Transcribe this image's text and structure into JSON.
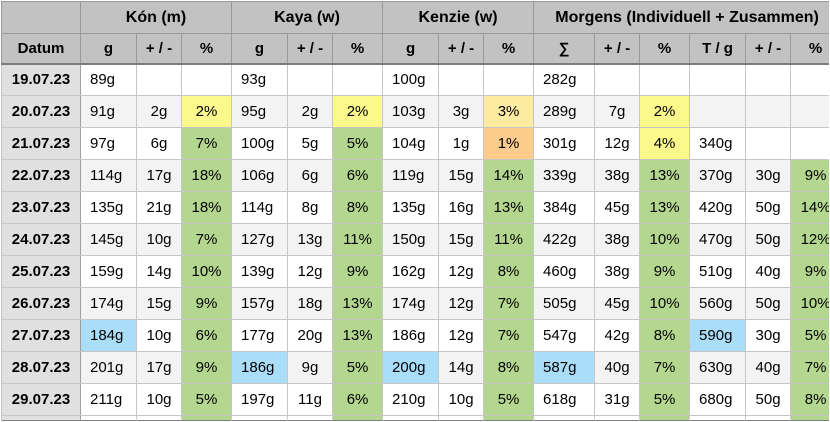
{
  "colors": {
    "green": "#b3d78f",
    "yellow": "#fbf88c",
    "amber": "#fcebA1",
    "orange": "#fbcc8b",
    "blue": "#aaddf7",
    "stripe": "#f3f3f3",
    "white": "#ffffff",
    "header_bg": "#c2c2c2",
    "date_bg": "#e0e0e0"
  },
  "table": {
    "groups": [
      {
        "label": "",
        "span": 1,
        "name": "corner-cell"
      },
      {
        "label": "Kón (m)",
        "span": 3,
        "name": "group-header-kon"
      },
      {
        "label": "Kaya (w)",
        "span": 3,
        "name": "group-header-kaya"
      },
      {
        "label": "Kenzie (w)",
        "span": 3,
        "name": "group-header-kenzie"
      },
      {
        "label": "Morgens (Individuell + Zusammen)",
        "span": 6,
        "name": "group-header-morgens"
      }
    ],
    "columns": [
      "Datum",
      "g",
      "+ / -",
      "%",
      "g",
      "+ / -",
      "%",
      "g",
      "+ / -",
      "%",
      "∑",
      "+ / -",
      "%",
      "T / g",
      "+ / -",
      "%"
    ],
    "rows": [
      {
        "date": "19.07.23",
        "cells": [
          {
            "v": "89g"
          },
          {
            "v": ""
          },
          {
            "v": ""
          },
          {
            "v": "93g"
          },
          {
            "v": ""
          },
          {
            "v": ""
          },
          {
            "v": "100g"
          },
          {
            "v": ""
          },
          {
            "v": ""
          },
          {
            "v": "282g"
          },
          {
            "v": ""
          },
          {
            "v": ""
          },
          {
            "v": ""
          },
          {
            "v": ""
          },
          {
            "v": ""
          }
        ]
      },
      {
        "date": "20.07.23",
        "cells": [
          {
            "v": "91g"
          },
          {
            "v": "2g"
          },
          {
            "v": "2%",
            "bg": "yellow"
          },
          {
            "v": "95g"
          },
          {
            "v": "2g"
          },
          {
            "v": "2%",
            "bg": "yellow"
          },
          {
            "v": "103g"
          },
          {
            "v": "3g"
          },
          {
            "v": "3%",
            "bg": "amber"
          },
          {
            "v": "289g"
          },
          {
            "v": "7g"
          },
          {
            "v": "2%",
            "bg": "yellow"
          },
          {
            "v": ""
          },
          {
            "v": ""
          },
          {
            "v": ""
          }
        ]
      },
      {
        "date": "21.07.23",
        "cells": [
          {
            "v": "97g"
          },
          {
            "v": "6g"
          },
          {
            "v": "7%",
            "bg": "green"
          },
          {
            "v": "100g"
          },
          {
            "v": "5g"
          },
          {
            "v": "5%",
            "bg": "green"
          },
          {
            "v": "104g"
          },
          {
            "v": "1g"
          },
          {
            "v": "1%",
            "bg": "orange"
          },
          {
            "v": "301g"
          },
          {
            "v": "12g"
          },
          {
            "v": "4%",
            "bg": "yellow"
          },
          {
            "v": "340g"
          },
          {
            "v": ""
          },
          {
            "v": ""
          }
        ]
      },
      {
        "date": "22.07.23",
        "cells": [
          {
            "v": "114g"
          },
          {
            "v": "17g"
          },
          {
            "v": "18%",
            "bg": "green"
          },
          {
            "v": "106g"
          },
          {
            "v": "6g"
          },
          {
            "v": "6%",
            "bg": "green"
          },
          {
            "v": "119g"
          },
          {
            "v": "15g"
          },
          {
            "v": "14%",
            "bg": "green"
          },
          {
            "v": "339g"
          },
          {
            "v": "38g"
          },
          {
            "v": "13%",
            "bg": "green"
          },
          {
            "v": "370g"
          },
          {
            "v": "30g"
          },
          {
            "v": "9%",
            "bg": "green"
          }
        ]
      },
      {
        "date": "23.07.23",
        "cells": [
          {
            "v": "135g"
          },
          {
            "v": "21g"
          },
          {
            "v": "18%",
            "bg": "green"
          },
          {
            "v": "114g"
          },
          {
            "v": "8g"
          },
          {
            "v": "8%",
            "bg": "green"
          },
          {
            "v": "135g"
          },
          {
            "v": "16g"
          },
          {
            "v": "13%",
            "bg": "green"
          },
          {
            "v": "384g"
          },
          {
            "v": "45g"
          },
          {
            "v": "13%",
            "bg": "green"
          },
          {
            "v": "420g"
          },
          {
            "v": "50g"
          },
          {
            "v": "14%",
            "bg": "green"
          }
        ]
      },
      {
        "date": "24.07.23",
        "cells": [
          {
            "v": "145g"
          },
          {
            "v": "10g"
          },
          {
            "v": "7%",
            "bg": "green"
          },
          {
            "v": "127g"
          },
          {
            "v": "13g"
          },
          {
            "v": "11%",
            "bg": "green"
          },
          {
            "v": "150g"
          },
          {
            "v": "15g"
          },
          {
            "v": "11%",
            "bg": "green"
          },
          {
            "v": "422g"
          },
          {
            "v": "38g"
          },
          {
            "v": "10%",
            "bg": "green"
          },
          {
            "v": "470g"
          },
          {
            "v": "50g"
          },
          {
            "v": "12%",
            "bg": "green"
          }
        ]
      },
      {
        "date": "25.07.23",
        "cells": [
          {
            "v": "159g"
          },
          {
            "v": "14g"
          },
          {
            "v": "10%",
            "bg": "green"
          },
          {
            "v": "139g"
          },
          {
            "v": "12g"
          },
          {
            "v": "9%",
            "bg": "green"
          },
          {
            "v": "162g"
          },
          {
            "v": "12g"
          },
          {
            "v": "8%",
            "bg": "green"
          },
          {
            "v": "460g"
          },
          {
            "v": "38g"
          },
          {
            "v": "9%",
            "bg": "green"
          },
          {
            "v": "510g"
          },
          {
            "v": "40g"
          },
          {
            "v": "9%",
            "bg": "green"
          }
        ]
      },
      {
        "date": "26.07.23",
        "cells": [
          {
            "v": "174g"
          },
          {
            "v": "15g"
          },
          {
            "v": "9%",
            "bg": "green"
          },
          {
            "v": "157g"
          },
          {
            "v": "18g"
          },
          {
            "v": "13%",
            "bg": "green"
          },
          {
            "v": "174g"
          },
          {
            "v": "12g"
          },
          {
            "v": "7%",
            "bg": "green"
          },
          {
            "v": "505g"
          },
          {
            "v": "45g"
          },
          {
            "v": "10%",
            "bg": "green"
          },
          {
            "v": "560g"
          },
          {
            "v": "50g"
          },
          {
            "v": "10%",
            "bg": "green"
          }
        ]
      },
      {
        "date": "27.07.23",
        "cells": [
          {
            "v": "184g",
            "bg": "blue"
          },
          {
            "v": "10g"
          },
          {
            "v": "6%",
            "bg": "green"
          },
          {
            "v": "177g"
          },
          {
            "v": "20g"
          },
          {
            "v": "13%",
            "bg": "green"
          },
          {
            "v": "186g"
          },
          {
            "v": "12g"
          },
          {
            "v": "7%",
            "bg": "green"
          },
          {
            "v": "547g"
          },
          {
            "v": "42g"
          },
          {
            "v": "8%",
            "bg": "green"
          },
          {
            "v": "590g",
            "bg": "blue"
          },
          {
            "v": "30g"
          },
          {
            "v": "5%",
            "bg": "green"
          }
        ]
      },
      {
        "date": "28.07.23",
        "cells": [
          {
            "v": "201g"
          },
          {
            "v": "17g"
          },
          {
            "v": "9%",
            "bg": "green"
          },
          {
            "v": "186g",
            "bg": "blue"
          },
          {
            "v": "9g"
          },
          {
            "v": "5%",
            "bg": "green"
          },
          {
            "v": "200g",
            "bg": "blue"
          },
          {
            "v": "14g"
          },
          {
            "v": "8%",
            "bg": "green"
          },
          {
            "v": "587g",
            "bg": "blue"
          },
          {
            "v": "40g"
          },
          {
            "v": "7%",
            "bg": "green"
          },
          {
            "v": "630g"
          },
          {
            "v": "40g"
          },
          {
            "v": "7%",
            "bg": "green"
          }
        ]
      },
      {
        "date": "29.07.23",
        "cells": [
          {
            "v": "211g"
          },
          {
            "v": "10g"
          },
          {
            "v": "5%",
            "bg": "green"
          },
          {
            "v": "197g"
          },
          {
            "v": "11g"
          },
          {
            "v": "6%",
            "bg": "green"
          },
          {
            "v": "210g"
          },
          {
            "v": "10g"
          },
          {
            "v": "5%",
            "bg": "green"
          },
          {
            "v": "618g"
          },
          {
            "v": "31g"
          },
          {
            "v": "5%",
            "bg": "green"
          },
          {
            "v": "680g"
          },
          {
            "v": "50g"
          },
          {
            "v": "8%",
            "bg": "green"
          }
        ]
      },
      {
        "date": "",
        "partial": true,
        "cells": [
          {
            "v": ""
          },
          {
            "v": ""
          },
          {
            "v": "",
            "bg": "green"
          },
          {
            "v": ""
          },
          {
            "v": ""
          },
          {
            "v": "",
            "bg": "green"
          },
          {
            "v": ""
          },
          {
            "v": ""
          },
          {
            "v": "",
            "bg": "green"
          },
          {
            "v": ""
          },
          {
            "v": ""
          },
          {
            "v": "",
            "bg": "green"
          },
          {
            "v": ""
          },
          {
            "v": ""
          },
          {
            "v": "",
            "bg": "green"
          }
        ]
      }
    ]
  }
}
